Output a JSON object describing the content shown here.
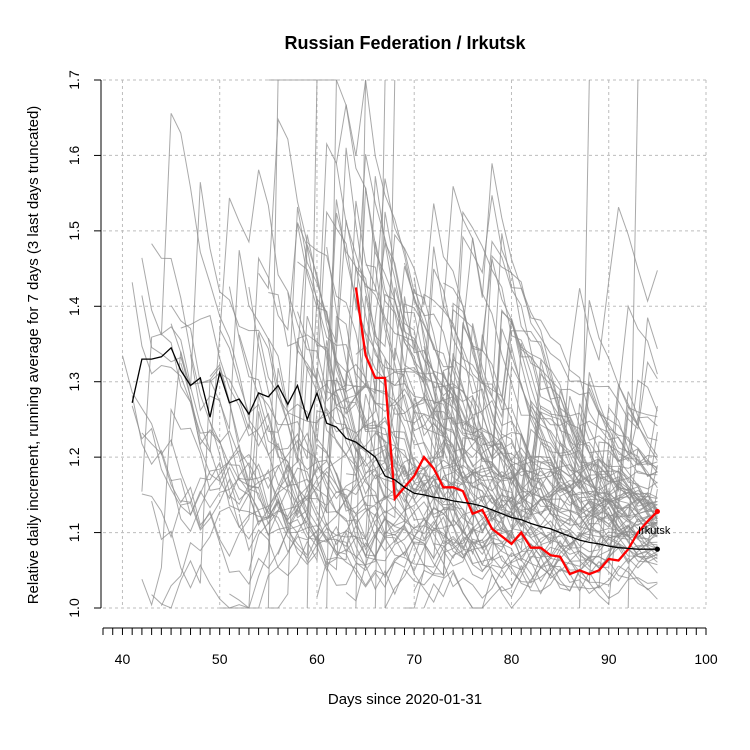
{
  "chart_data": {
    "type": "line",
    "title": "Russian Federation / Irkutsk",
    "xlabel": "Days since 2020-01-31",
    "ylabel": "Relative daily increment, running average for 7 days (3 last days truncated)",
    "xlim": [
      38,
      100
    ],
    "ylim": [
      1.0,
      1.7
    ],
    "x_ticks": [
      40,
      50,
      60,
      70,
      80,
      90,
      100
    ],
    "y_ticks": [
      1.0,
      1.1,
      1.2,
      1.3,
      1.4,
      1.5,
      1.6,
      1.7
    ],
    "grid": true,
    "colors": {
      "highlight": "#ff0000",
      "country": "#000000",
      "regions": "#8c8c8c",
      "grid": "#bdbdbd"
    },
    "annotation": "Irkutsk",
    "series": [
      {
        "name": "Irkutsk",
        "role": "highlight",
        "x": [
          64,
          65,
          66,
          67,
          68,
          69,
          70,
          71,
          72,
          73,
          74,
          75,
          76,
          77,
          78,
          79,
          80,
          81,
          82,
          83,
          84,
          85,
          86,
          87,
          88,
          89,
          90,
          91,
          92,
          93,
          94,
          95
        ],
        "y": [
          1.425,
          1.335,
          1.305,
          1.305,
          1.145,
          1.16,
          1.175,
          1.2,
          1.185,
          1.16,
          1.16,
          1.155,
          1.125,
          1.13,
          1.105,
          1.095,
          1.085,
          1.1,
          1.08,
          1.08,
          1.07,
          1.068,
          1.045,
          1.05,
          1.045,
          1.05,
          1.065,
          1.063,
          1.078,
          1.1,
          1.115,
          1.128
        ]
      },
      {
        "role": "country",
        "x": [
          41,
          42,
          43,
          44,
          45,
          46,
          47,
          48,
          49,
          50,
          51,
          52,
          53,
          54,
          55,
          56,
          57,
          58,
          59,
          60,
          61,
          62,
          63,
          64,
          65,
          66,
          67,
          68,
          69,
          70,
          71,
          72,
          73,
          74,
          75,
          76,
          77,
          78,
          79,
          80,
          81,
          82,
          83,
          84,
          85,
          86,
          87,
          88,
          89,
          90,
          91,
          92,
          93,
          94,
          95
        ],
        "y": [
          1.272,
          1.33,
          1.33,
          1.333,
          1.345,
          1.315,
          1.295,
          1.305,
          1.253,
          1.312,
          1.272,
          1.277,
          1.257,
          1.285,
          1.28,
          1.295,
          1.27,
          1.295,
          1.25,
          1.285,
          1.245,
          1.24,
          1.225,
          1.22,
          1.21,
          1.2,
          1.175,
          1.17,
          1.16,
          1.152,
          1.15,
          1.147,
          1.145,
          1.142,
          1.14,
          1.138,
          1.135,
          1.13,
          1.125,
          1.12,
          1.117,
          1.112,
          1.108,
          1.105,
          1.1,
          1.095,
          1.09,
          1.087,
          1.085,
          1.082,
          1.08,
          1.079,
          1.078,
          1.078,
          1.078
        ]
      }
    ]
  }
}
